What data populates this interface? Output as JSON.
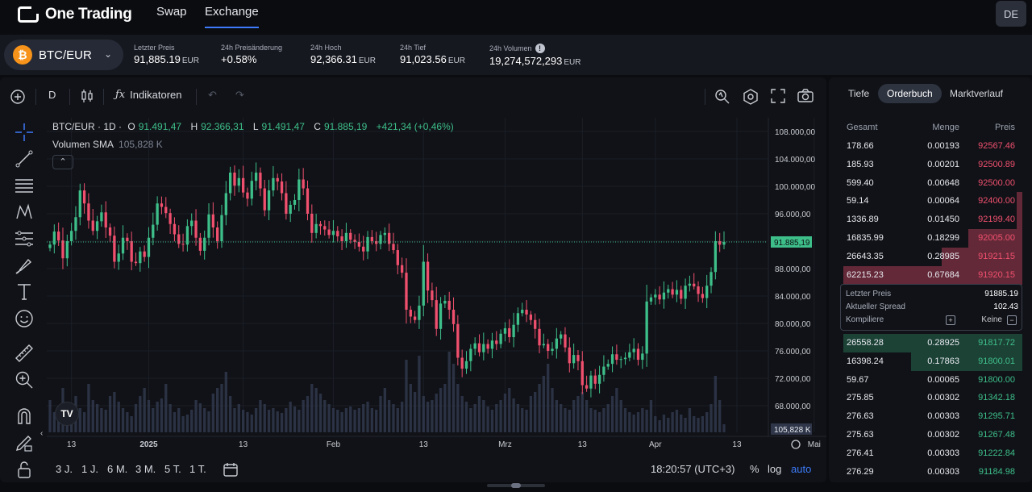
{
  "nav": {
    "brand": "One Trading",
    "links": [
      "Swap",
      "Exchange"
    ],
    "active": "Exchange",
    "lang": "DE"
  },
  "market": {
    "pair": "BTC/EUR",
    "stats": [
      {
        "label": "Letzter Preis",
        "value": "91,885.19",
        "unit": "EUR"
      },
      {
        "label": "24h Preisänderung",
        "value": "+0.58%",
        "unit": ""
      },
      {
        "label": "24h Hoch",
        "value": "92,366.31",
        "unit": "EUR"
      },
      {
        "label": "24h Tief",
        "value": "91,023.56",
        "unit": "EUR"
      },
      {
        "label": "24h Volumen",
        "value": "19,274,572,293",
        "unit": "EUR"
      }
    ]
  },
  "toolbar": {
    "interval": "D",
    "indicators": "Indikatoren"
  },
  "legend": {
    "title": "BTC/EUR · 1D ·",
    "o_lbl": "O",
    "o": "91.491,47",
    "h_lbl": "H",
    "h": "92.366,31",
    "l_lbl": "L",
    "l": "91.491,47",
    "c_lbl": "C",
    "c": "91.885,19",
    "change": "+421,34 (+0,46%)",
    "volume_label": "Volumen SMA",
    "volume_value": "105,828 K"
  },
  "bottom": {
    "ranges": [
      "3 J.",
      "1 J.",
      "6 M.",
      "3 M.",
      "5 T.",
      "1 T."
    ],
    "time": "18:20:57 (UTC+3)",
    "pct": "%",
    "log": "log",
    "auto": "auto"
  },
  "colors": {
    "up": "#3ebf8a",
    "down": "#f0506e",
    "accent": "#3d7bfa"
  },
  "chart_data": {
    "type": "candlestick",
    "title": "BTC/EUR · 1D",
    "y_ticks": [
      "108.000,00",
      "104.000,00",
      "100.000,00",
      "96.000,00",
      "92.000,00",
      "88.000,00",
      "84.000,00",
      "80.000,00",
      "76.000,00",
      "72.000,00",
      "68.000,00"
    ],
    "ylim": [
      66000,
      110000
    ],
    "x_ticks": [
      "13",
      "2025",
      "13",
      "Feb",
      "13",
      "Mrz",
      "13",
      "Apr",
      "13",
      "Mai",
      "13"
    ],
    "last_price_label": "91.885,19",
    "last_price": 91885.19,
    "volume_label": "105,828 K",
    "closes": [
      91500,
      93400,
      92100,
      89500,
      92000,
      93500,
      95500,
      99400,
      97500,
      95000,
      93500,
      94900,
      96200,
      94000,
      92800,
      89000,
      90200,
      92500,
      92000,
      89000,
      88800,
      90500,
      89700,
      92500,
      94400,
      97500,
      97000,
      96100,
      94500,
      93000,
      91600,
      91500,
      94200,
      95000,
      92500,
      90600,
      92500,
      95900,
      94000,
      92000,
      95800,
      99000,
      102000,
      100100,
      101200,
      99100,
      98200,
      100800,
      102000,
      99700,
      96500,
      99400,
      101200,
      100700,
      99000,
      96000,
      97300,
      98000,
      101000,
      99700,
      96000,
      93200,
      94500,
      94200,
      93700,
      92900,
      93500,
      92700,
      92000,
      93200,
      92200,
      91900,
      91200,
      90500,
      92600,
      92000,
      91600,
      92900,
      93200,
      91600,
      90700,
      88500,
      87400,
      82000,
      81000,
      80500,
      82600,
      89000,
      84800,
      83400,
      79200,
      82900,
      83300,
      82000,
      79900,
      75000,
      73400,
      74500,
      76300,
      77100,
      75800,
      77000,
      76300,
      77500,
      77000,
      78500,
      79300,
      78000,
      79800,
      81500,
      82000,
      81300,
      80500,
      79200,
      76800,
      77000,
      76000,
      76300,
      77800,
      78400,
      76500,
      74200,
      75400,
      74500,
      71000,
      70500,
      72400,
      71200,
      72500,
      73700,
      74100,
      75500,
      74700,
      74800,
      75000,
      75800,
      76300,
      74700,
      75600,
      83200,
      83800,
      84200,
      83500,
      84500,
      85000,
      84200,
      84900,
      83600,
      85500,
      85800,
      85400,
      84300,
      83700,
      85500,
      87500,
      92000,
      91490,
      91885
    ],
    "volumes": [
      40,
      25,
      30,
      55,
      20,
      35,
      45,
      30,
      25,
      60,
      40,
      35,
      30,
      28,
      45,
      50,
      38,
      30,
      25,
      20,
      35,
      45,
      55,
      40,
      30,
      38,
      42,
      60,
      35,
      25,
      30,
      20,
      22,
      28,
      40,
      36,
      30,
      26,
      48,
      55,
      60,
      75,
      45,
      30,
      35,
      28,
      25,
      22,
      30,
      40,
      35,
      28,
      30,
      26,
      24,
      30,
      38,
      32,
      28,
      40,
      45,
      60,
      55,
      48,
      40,
      35,
      30,
      28,
      25,
      30,
      32,
      28,
      30,
      35,
      38,
      30,
      28,
      45,
      55,
      40,
      35,
      30,
      38,
      90,
      60,
      50,
      95,
      45,
      38,
      40,
      48,
      55,
      60,
      100,
      85,
      60,
      45,
      38,
      30,
      35,
      45,
      40,
      32,
      28,
      35,
      40,
      48,
      55,
      42,
      35,
      30,
      28,
      45,
      50,
      60,
      70,
      85,
      55,
      40,
      35,
      30,
      28,
      40,
      45,
      50,
      40,
      30,
      28,
      25,
      30,
      35,
      45,
      55,
      40,
      30,
      25,
      22,
      25,
      30,
      28,
      40,
      20,
      15,
      22,
      18,
      25,
      28,
      22,
      18,
      30,
      20,
      18,
      20,
      25,
      35,
      70,
      40,
      10
    ],
    "volume_scale_max": 110
  },
  "orderbook": {
    "tabs": [
      "Tiefe",
      "Orderbuch",
      "Marktverlauf"
    ],
    "active_tab": "Orderbuch",
    "headers": [
      "Gesamt",
      "Menge",
      "Preis"
    ],
    "asks": [
      {
        "total": "178.66",
        "amount": "0.00193",
        "price": "92567.46",
        "depth": 0
      },
      {
        "total": "185.93",
        "amount": "0.00201",
        "price": "92500.89",
        "depth": 0
      },
      {
        "total": "599.40",
        "amount": "0.00648",
        "price": "92500.00",
        "depth": 0
      },
      {
        "total": "59.14",
        "amount": "0.00064",
        "price": "92400.00",
        "depth": 0.03
      },
      {
        "total": "1336.89",
        "amount": "0.01450",
        "price": "92199.40",
        "depth": 0.03
      },
      {
        "total": "16835.99",
        "amount": "0.18299",
        "price": "92005.00",
        "depth": 0.3
      },
      {
        "total": "26643.35",
        "amount": "0.28985",
        "price": "91921.15",
        "depth": 0.45
      },
      {
        "total": "62215.23",
        "amount": "0.67684",
        "price": "91920.15",
        "depth": 1.0
      }
    ],
    "spread": {
      "last_price_label": "Letzter Preis",
      "last_price": "91885.19",
      "spread_label": "Aktueller Spread",
      "spread": "102.43",
      "compile_label": "Kompiliere",
      "compile_value": "Keine"
    },
    "bids": [
      {
        "total": "26558.28",
        "amount": "0.28925",
        "price": "91817.72",
        "depth": 1.0
      },
      {
        "total": "16398.24",
        "amount": "0.17863",
        "price": "91800.01",
        "depth": 0.62
      },
      {
        "total": "59.67",
        "amount": "0.00065",
        "price": "91800.00",
        "depth": 0
      },
      {
        "total": "275.85",
        "amount": "0.00302",
        "price": "91342.18",
        "depth": 0
      },
      {
        "total": "276.63",
        "amount": "0.00303",
        "price": "91295.71",
        "depth": 0
      },
      {
        "total": "275.63",
        "amount": "0.00302",
        "price": "91267.48",
        "depth": 0
      },
      {
        "total": "276.41",
        "amount": "0.00303",
        "price": "91222.84",
        "depth": 0
      },
      {
        "total": "276.29",
        "amount": "0.00303",
        "price": "91184.98",
        "depth": 0
      }
    ]
  }
}
